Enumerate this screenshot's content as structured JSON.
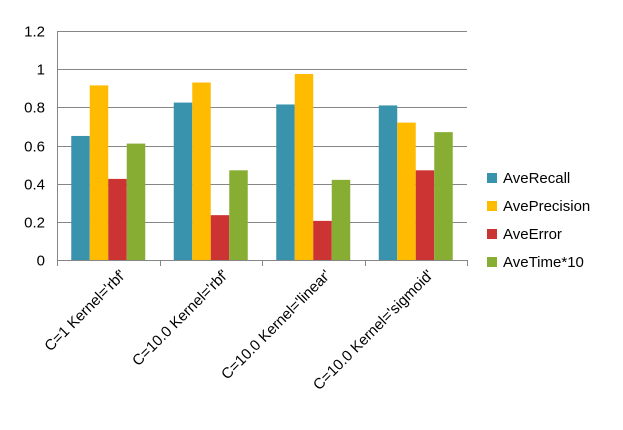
{
  "chart_data": {
    "type": "bar",
    "title": "",
    "xlabel": "",
    "ylabel": "",
    "ylim": [
      0,
      1.2
    ],
    "yticks": [
      "0",
      "0.2",
      "0.4",
      "0.6",
      "0.8",
      "1",
      "1.2"
    ],
    "grid": true,
    "legend_position": "right",
    "categories": [
      "C=1 Kernel='rbf'",
      "C=10.0 Kernel='rbf'",
      "C=10.0 Kernel='linear'",
      "C=10.0 Kernel='sigmoid'"
    ],
    "series": [
      {
        "name": "AveRecall",
        "color": "#3a93ad",
        "values": [
          0.65,
          0.825,
          0.815,
          0.81
        ]
      },
      {
        "name": "AvePrecision",
        "color": "#ffbb00",
        "values": [
          0.915,
          0.93,
          0.975,
          0.72
        ]
      },
      {
        "name": "AveError",
        "color": "#cc3333",
        "values": [
          0.425,
          0.235,
          0.205,
          0.47
        ]
      },
      {
        "name": "AveTime*10",
        "color": "#88ad33",
        "values": [
          0.61,
          0.47,
          0.42,
          0.67
        ]
      }
    ]
  }
}
